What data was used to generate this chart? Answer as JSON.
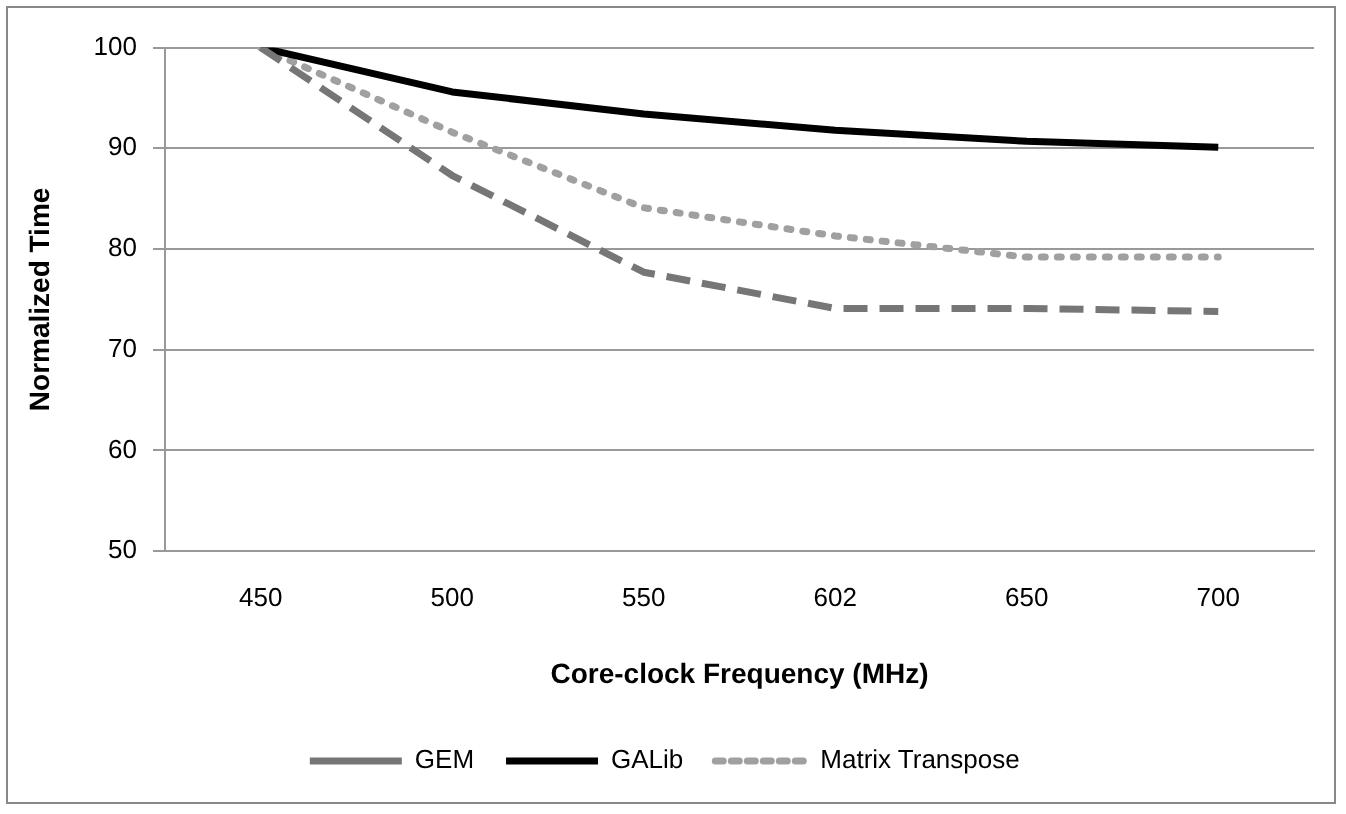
{
  "chart_data": {
    "type": "line",
    "xlabel": "Core-clock Frequency (MHz)",
    "ylabel": "Normalized Time",
    "categories": [
      "450",
      "500",
      "550",
      "602",
      "650",
      "700"
    ],
    "series": [
      {
        "name": "GEM",
        "color": "#767676",
        "line_style": "dashed",
        "values": [
          100,
          87.3,
          77.7,
          74.1,
          74.1,
          73.8
        ]
      },
      {
        "name": "GALib",
        "color": "#000000",
        "line_style": "solid",
        "values": [
          100,
          95.6,
          93.4,
          91.8,
          90.7,
          90.1
        ]
      },
      {
        "name": "Matrix Transpose",
        "color": "#a0a0a0",
        "line_style": "dotted",
        "values": [
          100,
          91.6,
          84.1,
          81.3,
          79.2,
          79.2
        ]
      }
    ],
    "ylim": [
      50,
      100
    ],
    "yticks": [
      50,
      60,
      70,
      80,
      90,
      100
    ],
    "grid": "y",
    "legend": "bottom",
    "marker": "none"
  }
}
